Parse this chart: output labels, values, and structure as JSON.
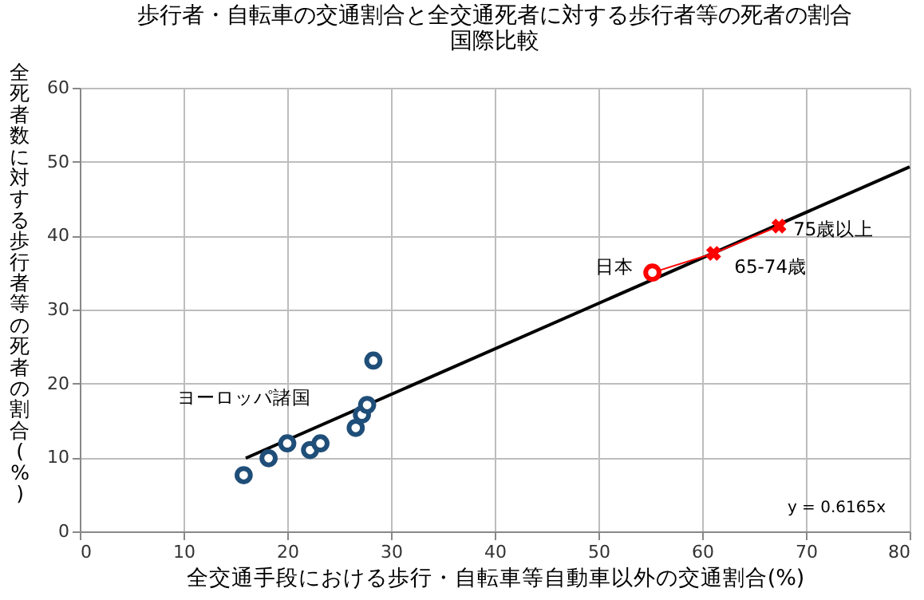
{
  "chart_data": {
    "type": "scatter",
    "title": "歩行者・自転車の交通割合と全交通死者に対する歩行者等の死者の割合",
    "subtitle": "国際比較",
    "xlabel": "全交通手段における歩行・自転車等自動車以外の交通割合(%)",
    "ylabel": "全死者数に対する歩行者等の死者の割合(%)",
    "xlim": [
      0,
      80
    ],
    "xticks": [
      0,
      10,
      20,
      30,
      40,
      50,
      60,
      70,
      80
    ],
    "ylim": [
      0,
      60
    ],
    "yticks": [
      0,
      10,
      20,
      30,
      40,
      50,
      60
    ],
    "grid": true,
    "series": [
      {
        "type": "line",
        "color": "#000000",
        "marker": "none",
        "x": [
          16,
          80
        ],
        "values": [
          9.9,
          49.3
        ]
      },
      {
        "type": "scatter",
        "color": "#1f4e79",
        "marker": "circle",
        "x": [
          15.8,
          18.2,
          20.0,
          22.2,
          23.2,
          26.6,
          27.2,
          27.7,
          28.3
        ],
        "values": [
          7.6,
          9.9,
          11.9,
          11.0,
          11.9,
          14.0,
          15.8,
          17.1,
          23.1
        ]
      },
      {
        "type": "line",
        "color": "#ff0000",
        "marker": "none",
        "x": [
          55.2,
          61.1,
          67.4
        ],
        "values": [
          35.0,
          37.6,
          41.3
        ]
      },
      {
        "type": "scatter",
        "color": "#ff0000",
        "marker": "circle",
        "x": [
          55.2
        ],
        "values": [
          35.0
        ]
      },
      {
        "type": "scatter",
        "color": "#ff0000",
        "marker": "cross",
        "x": [
          61.1,
          67.4
        ],
        "values": [
          37.6,
          41.3
        ]
      }
    ],
    "annotations": [
      {
        "text": "ヨーロッパ諸国",
        "x": 20.0,
        "y": 11.9
      },
      {
        "text": "日本",
        "x": 55.2,
        "y": 35.0
      },
      {
        "text": "65-74歳",
        "x": 61.1,
        "y": 37.6
      },
      {
        "text": "75歳以上",
        "x": 67.4,
        "y": 41.3
      },
      "y = 0.6165x"
    ]
  }
}
